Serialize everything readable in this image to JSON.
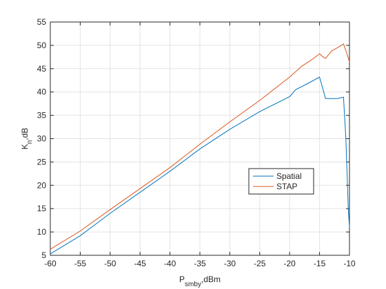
{
  "chart_data": {
    "type": "line",
    "xlabel": [
      "P",
      "smby",
      ",dBm"
    ],
    "ylabel": [
      "K",
      "n",
      ",dB"
    ],
    "xlim": [
      -60,
      -10
    ],
    "xticks": [
      -60,
      -55,
      -50,
      -45,
      -40,
      -35,
      -30,
      -25,
      -20,
      -15,
      -10
    ],
    "ylim": [
      5,
      55
    ],
    "yticks": [
      5,
      10,
      15,
      20,
      25,
      30,
      35,
      40,
      45,
      50,
      55
    ],
    "grid": true,
    "legend": "east",
    "series": [
      {
        "name": "Spatial",
        "color": "#0072bd",
        "x": [
          -60,
          -55,
          -50,
          -45,
          -40,
          -35,
          -30,
          -25,
          -20,
          -19,
          -17,
          -15,
          -14,
          -12,
          -11,
          -10.6,
          -10.2,
          -10
        ],
        "values": [
          5.3,
          9.2,
          14,
          18.5,
          23,
          27.8,
          32,
          35.8,
          39,
          40.5,
          41.8,
          43.2,
          38.6,
          38.6,
          38.9,
          30,
          15,
          11
        ]
      },
      {
        "name": "STAP",
        "color": "#d95319",
        "x": [
          -60,
          -55,
          -50,
          -45,
          -40,
          -35,
          -30,
          -25,
          -20,
          -18,
          -16,
          -15,
          -14.5,
          -14,
          -13,
          -12,
          -11,
          -10.5,
          -10
        ],
        "values": [
          6.3,
          10.2,
          14.8,
          19.3,
          23.8,
          28.8,
          33.6,
          38.2,
          43.2,
          45.5,
          47.2,
          48.2,
          47.6,
          47.2,
          48.8,
          49.5,
          50.3,
          48.5,
          46.5
        ]
      }
    ]
  }
}
